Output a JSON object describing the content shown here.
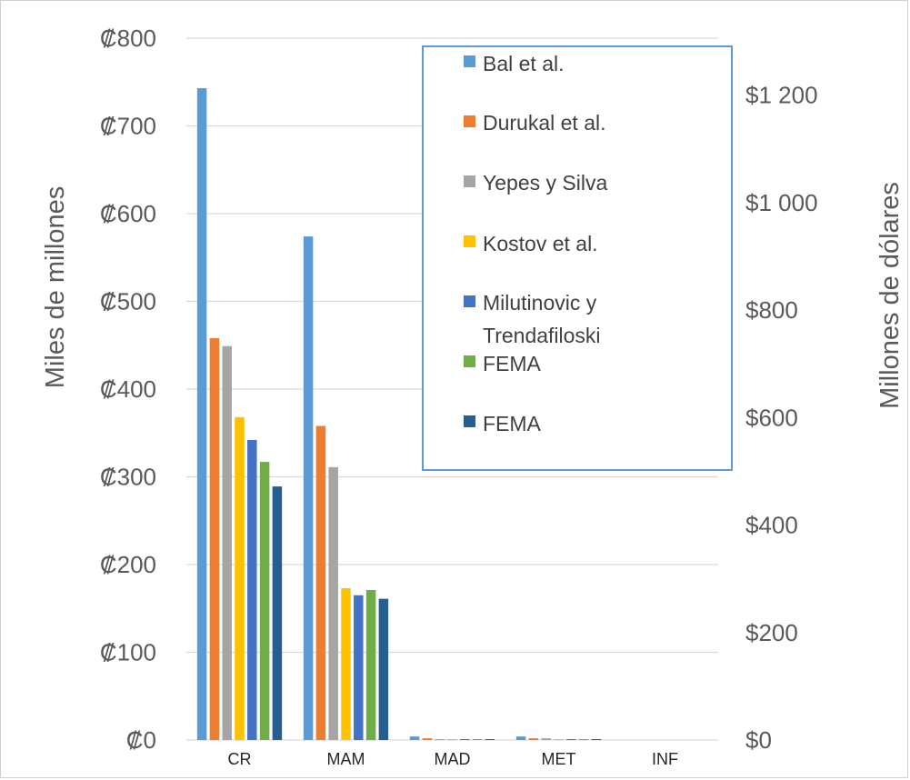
{
  "chart_data": {
    "type": "bar",
    "categories": [
      "CR",
      "MAM",
      "MAD",
      "MET",
      "INF"
    ],
    "series": [
      {
        "name": "Bal et al.",
        "color": "#5b9bd5",
        "values": [
          743,
          574,
          4,
          4,
          0
        ]
      },
      {
        "name": "Durukal et al.",
        "color": "#ed7d31",
        "values": [
          458,
          358,
          2,
          2,
          0
        ]
      },
      {
        "name": "Yepes y Silva",
        "color": "#a5a5a5",
        "values": [
          449,
          311,
          1,
          2,
          0
        ]
      },
      {
        "name": "Kostov et al.",
        "color": "#ffc000",
        "values": [
          368,
          173,
          1,
          1,
          0
        ]
      },
      {
        "name": "Milutinovic y Trendafiloski",
        "color": "#4472c4",
        "values": [
          342,
          165,
          1,
          1,
          0
        ]
      },
      {
        "name": "FEMA",
        "color": "#70ad47",
        "values": [
          317,
          171,
          1,
          1,
          0
        ]
      },
      {
        "name": "FEMA",
        "color": "#255e91",
        "values": [
          289,
          161,
          1,
          1,
          0
        ]
      }
    ],
    "ylabel": "Miles de millones",
    "y2label": "Millones de dólares",
    "ylim": [
      0,
      800
    ],
    "y_ticks": [
      "₡0",
      "₡100",
      "₡200",
      "₡300",
      "₡400",
      "₡500",
      "₡600",
      "₡700",
      "₡800"
    ],
    "y2lim": [
      0,
      1306
    ],
    "y2_ticks": [
      {
        "value": 0,
        "label": "$0"
      },
      {
        "value": 200,
        "label": "$200"
      },
      {
        "value": 400,
        "label": "$400"
      },
      {
        "value": 600,
        "label": "$600"
      },
      {
        "value": 800,
        "label": "$800"
      },
      {
        "value": 1000,
        "label": "$1 000"
      },
      {
        "value": 1200,
        "label": "$1 200"
      }
    ],
    "grid": true,
    "legend_position": "top-right"
  }
}
